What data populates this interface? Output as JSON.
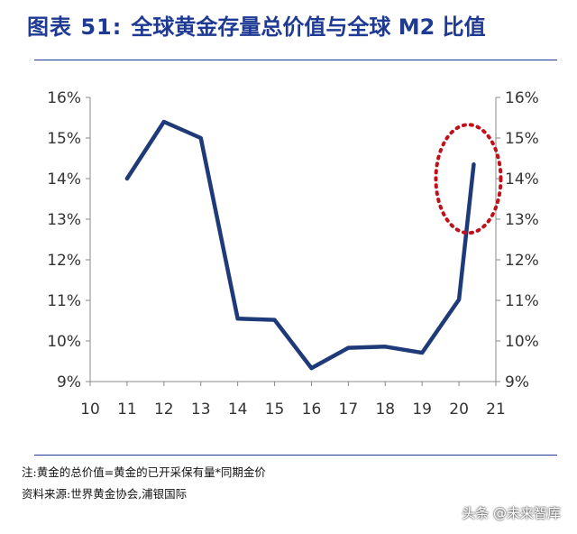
{
  "figure": {
    "label": "图表 51:",
    "title": "全球黄金存量总价值与全球 M2 比值"
  },
  "notes": {
    "note": "注:黄金的总价值=黄金的已开采保有量*同期金价",
    "source": "资料来源:世界黄金协会,浦银国际"
  },
  "watermark": "头条 @未来智库",
  "colors": {
    "line": "#1f3a78",
    "highlight": "#c0101a",
    "axis": "#8a8a8a",
    "accent": "#1f3a93"
  },
  "chart_data": {
    "type": "line",
    "title": "",
    "xlabel": "",
    "ylabel": "",
    "x": [
      11,
      12,
      13,
      14,
      15,
      16,
      17,
      18,
      19,
      20,
      20.4
    ],
    "series": [
      {
        "values": [
          14.0,
          15.4,
          15.0,
          10.55,
          10.52,
          9.33,
          9.83,
          9.86,
          9.71,
          11.02,
          14.35
        ]
      }
    ],
    "xlim": [
      10,
      21
    ],
    "ylim": [
      9,
      16
    ],
    "xticks": [
      "10",
      "11",
      "12",
      "13",
      "14",
      "15",
      "16",
      "17",
      "18",
      "19",
      "20",
      "21"
    ],
    "yticks_left": [
      "9%",
      "10%",
      "11%",
      "12%",
      "13%",
      "14%",
      "15%",
      "16%"
    ],
    "yticks_right": [
      "9%",
      "10%",
      "11%",
      "12%",
      "13%",
      "14%",
      "15%",
      "16%"
    ],
    "grid": false,
    "annotation": "dotted red ellipse around latest value"
  }
}
